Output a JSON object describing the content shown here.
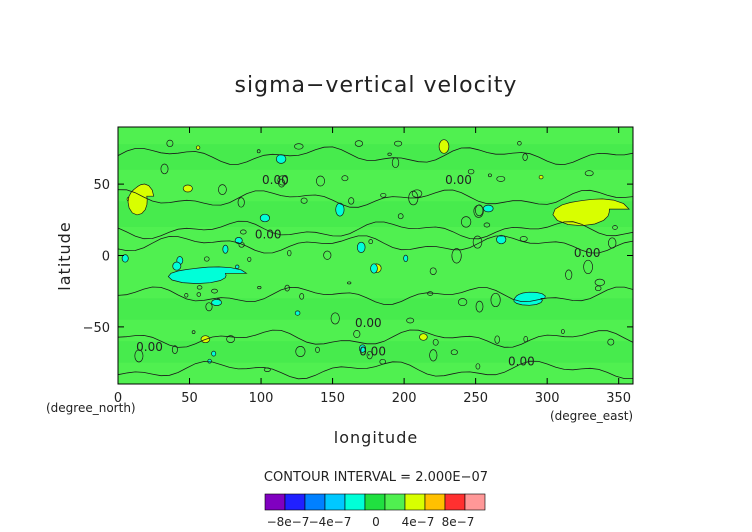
{
  "chart_data": {
    "type": "heatmap",
    "title": "sigma−vertical velocity",
    "xlabel": "longitude",
    "ylabel": "latitude",
    "x_unit": "(degree_east)",
    "y_unit": "(degree_north)",
    "xlim": [
      0,
      360
    ],
    "ylim": [
      -90,
      90
    ],
    "x_ticks": [
      0,
      50,
      100,
      150,
      200,
      250,
      300,
      350
    ],
    "y_ticks": [
      -50,
      0,
      50
    ],
    "x_tick_labels": [
      "0",
      "50",
      "100",
      "150",
      "200",
      "250",
      "300",
      "350"
    ],
    "y_tick_labels": [
      "−50",
      "0",
      "50"
    ],
    "contour_interval_text": "CONTOUR INTERVAL = 2.000E−07",
    "contour_label": "0.00",
    "contour_labels": [
      {
        "lon": 110,
        "lat": 50,
        "text": "0.00"
      },
      {
        "lon": 238,
        "lat": 50,
        "text": "0.00"
      },
      {
        "lon": 105,
        "lat": 12,
        "text": "0.00"
      },
      {
        "lon": 328,
        "lat": -1,
        "text": "0.00"
      },
      {
        "lon": 175,
        "lat": -50,
        "text": "0.00"
      },
      {
        "lon": 22,
        "lat": -67,
        "text": "0.00"
      },
      {
        "lon": 178,
        "lat": -70,
        "text": "0.00"
      },
      {
        "lon": 282,
        "lat": -77,
        "text": "0.00"
      }
    ],
    "colorbar": {
      "colors": [
        "#8000c0",
        "#2020ff",
        "#0080ff",
        "#00c8ff",
        "#00ffd8",
        "#20e040",
        "#50f050",
        "#d8ff00",
        "#ffc000",
        "#ff3030",
        "#ff9898"
      ],
      "tick_labels": [
        "−8e−7",
        "−4e−7",
        "0",
        "4e−7",
        "8e−7"
      ]
    },
    "regions": [
      {
        "level": "4e-7",
        "color": "#d8ff00",
        "lon": [
          5,
          25
        ],
        "lat": [
          28,
          55
        ]
      },
      {
        "level": "4e-7",
        "color": "#d8ff00",
        "lon": [
          300,
          358
        ],
        "lat": [
          20,
          45
        ]
      },
      {
        "level": "-4e-7",
        "color": "#00ffd8",
        "lon": [
          30,
          90
        ],
        "lat": [
          -20,
          -5
        ]
      },
      {
        "level": "-4e-7",
        "color": "#00ffd8",
        "lon": [
          270,
          300
        ],
        "lat": [
          -35,
          -25
        ]
      }
    ]
  }
}
